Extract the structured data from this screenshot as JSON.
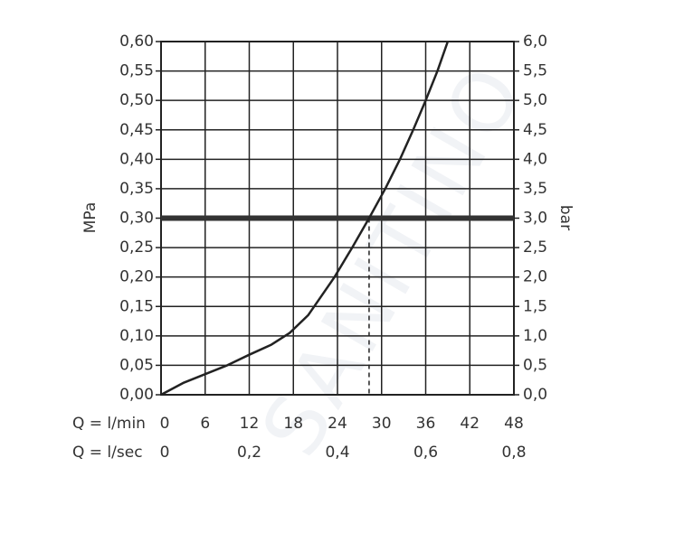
{
  "chart_data": {
    "type": "line",
    "y_label": "MPa",
    "y2_label": "bar",
    "x_label": "Q = l/min",
    "x2_label": "Q = l/sec",
    "watermark": "SANITINO",
    "x": [
      0,
      3,
      6,
      9,
      12,
      15,
      17.5,
      20,
      23.6,
      26,
      28.3,
      30.5,
      32.5,
      34.3,
      36,
      37.6,
      39
    ],
    "values": [
      0,
      0.02,
      0.035,
      0.05,
      0.068,
      0.085,
      0.105,
      0.135,
      0.2,
      0.25,
      0.3,
      0.35,
      0.4,
      0.45,
      0.5,
      0.55,
      0.6
    ],
    "color": "#222222",
    "reference_y": 0.3,
    "reference_x": 28.3,
    "xlim": [
      0,
      48
    ],
    "xticks": [
      0,
      6,
      12,
      18,
      24,
      30,
      36,
      42,
      48
    ],
    "x2lim": [
      0,
      0.8
    ],
    "x2ticks": [
      0,
      {
        "value": 0.2,
        "label": "0,2"
      },
      {
        "value": 0.4,
        "label": "0,4"
      },
      {
        "value": 0.6,
        "label": "0,6"
      },
      {
        "value": 0.8,
        "label": "0,8"
      }
    ],
    "ylim": [
      0,
      0.6
    ],
    "yticks": [
      {
        "value": 0,
        "label": "0,00"
      },
      {
        "value": 0.05,
        "label": "0,05"
      },
      {
        "value": 0.1,
        "label": "0,10"
      },
      {
        "value": 0.15,
        "label": "0,15"
      },
      {
        "value": 0.2,
        "label": "0,20"
      },
      {
        "value": 0.25,
        "label": "0,25"
      },
      {
        "value": 0.3,
        "label": "0,30"
      },
      {
        "value": 0.35,
        "label": "0,35"
      },
      {
        "value": 0.4,
        "label": "0,40"
      },
      {
        "value": 0.45,
        "label": "0,45"
      },
      {
        "value": 0.5,
        "label": "0,50"
      },
      {
        "value": 0.55,
        "label": "0,55"
      },
      {
        "value": 0.6,
        "label": "0,60"
      }
    ],
    "y2lim": [
      0,
      6
    ],
    "y2ticks": [
      {
        "value": 0,
        "label": "0,0"
      },
      {
        "value": 0.5,
        "label": "0,5"
      },
      {
        "value": 1,
        "label": "1,0"
      },
      {
        "value": 1.5,
        "label": "1,5"
      },
      {
        "value": 2,
        "label": "2,0"
      },
      {
        "value": 2.5,
        "label": "2,5"
      },
      {
        "value": 3,
        "label": "3,0"
      },
      {
        "value": 3.5,
        "label": "3,5"
      },
      {
        "value": 4,
        "label": "4,0"
      },
      {
        "value": 4.5,
        "label": "4,5"
      },
      {
        "value": 5,
        "label": "5,0"
      },
      {
        "value": 5.5,
        "label": "5,5"
      },
      {
        "value": 6,
        "label": "6,0"
      }
    ],
    "grid": true
  }
}
